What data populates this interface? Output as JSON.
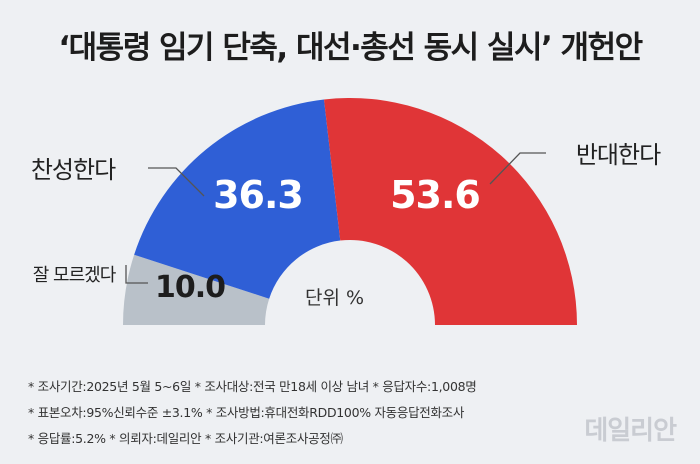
{
  "title": "‘대통령 임기 단축, 대선·총선 동시 실시’ 개헌안",
  "unit_label": "단위 %",
  "colors": {
    "agree": "#2f5fd6",
    "disagree": "#e03537",
    "unsure": "#b9c1c9",
    "background": "#eef0f3"
  },
  "chart_data": {
    "type": "pie",
    "style": "half-donut",
    "categories": [
      "잘 모르겠다",
      "찬성한다",
      "반대한다"
    ],
    "values": [
      10.0,
      36.3,
      53.6
    ],
    "value_labels": [
      "10.0",
      "36.3",
      "53.6"
    ],
    "colors": [
      "#b9c1c9",
      "#2f5fd6",
      "#e03537"
    ],
    "unit": "%"
  },
  "notes": [
    "* 조사기간:2025년 5월 5~6일  * 조사대상:전국 만18세 이상 남녀  * 응답자수:1,008명",
    "* 표본오차:95%신뢰수준 ±3.1%  * 조사방법:휴대전화RDD100% 자동응답전화조사",
    "* 응답률:5.2%  * 의뢰자:데일리안  * 조사기관:여론조사공정㈜"
  ],
  "logo_text": "데일리안"
}
